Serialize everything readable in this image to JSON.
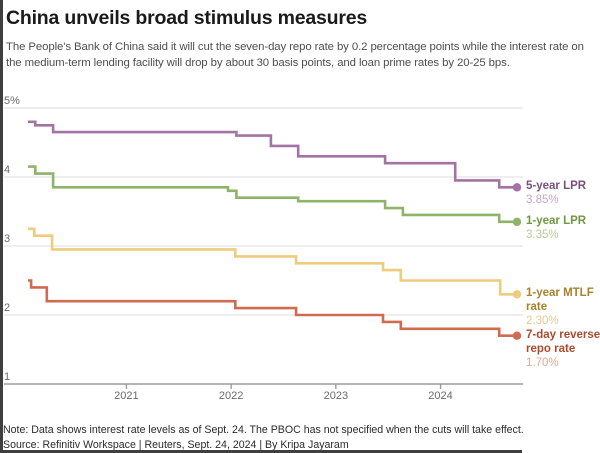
{
  "header": {
    "title": "China unveils broad stimulus measures",
    "subtitle": "The People's Bank of China said it will cut the seven-day repo rate by 0.2 percentage points while the interest rate on the medium-term lending facility will drop by about 30 basis points, and loan prime rates by 20-25 bps."
  },
  "chart_data": {
    "type": "step-line",
    "x_axis": {
      "range": [
        2020.06,
        2024.73
      ],
      "ticks": [
        {
          "value": 2021,
          "label": "2021"
        },
        {
          "value": 2022,
          "label": "2022"
        },
        {
          "value": 2023,
          "label": "2023"
        },
        {
          "value": 2024,
          "label": "2024"
        }
      ]
    },
    "y_axis": {
      "unit": "%",
      "range": [
        1,
        5
      ],
      "ticks": [
        {
          "value": 5,
          "label": "5%"
        },
        {
          "value": 4,
          "label": "4"
        },
        {
          "value": 3,
          "label": "3"
        },
        {
          "value": 2,
          "label": "2"
        },
        {
          "value": 1,
          "label": "1"
        }
      ],
      "grid_color": "#dcdcdc",
      "axis_color": "#9b9b9b"
    },
    "series": [
      {
        "id": "5-year-lpr",
        "label_lines": [
          "5-year LPR"
        ],
        "end_value_label": "3.85%",
        "color": "#a273a3",
        "label_color": "#7a4f7c",
        "value_color": "#c3a8c3",
        "points": [
          [
            2020.06,
            4.8
          ],
          [
            2020.13,
            4.75
          ],
          [
            2020.3,
            4.65
          ],
          [
            2022.05,
            4.6
          ],
          [
            2022.38,
            4.45
          ],
          [
            2022.64,
            4.3
          ],
          [
            2023.47,
            4.2
          ],
          [
            2024.14,
            3.95
          ],
          [
            2024.56,
            3.85
          ]
        ]
      },
      {
        "id": "1-year-lpr",
        "label_lines": [
          "1-year LPR"
        ],
        "end_value_label": "3.35%",
        "color": "#8fb369",
        "label_color": "#6f9840",
        "value_color": "#b5cd92",
        "points": [
          [
            2020.06,
            4.15
          ],
          [
            2020.13,
            4.05
          ],
          [
            2020.3,
            3.85
          ],
          [
            2021.97,
            3.8
          ],
          [
            2022.05,
            3.7
          ],
          [
            2022.64,
            3.65
          ],
          [
            2023.47,
            3.55
          ],
          [
            2023.64,
            3.45
          ],
          [
            2024.56,
            3.35
          ]
        ]
      },
      {
        "id": "1-year-mtlf-rate",
        "label_lines": [
          "1-year MTLF",
          "rate"
        ],
        "end_value_label": "2.30%",
        "color": "#efcb7e",
        "label_color": "#a8822c",
        "value_color": "#e0ca96",
        "points": [
          [
            2020.06,
            3.25
          ],
          [
            2020.12,
            3.15
          ],
          [
            2020.29,
            2.95
          ],
          [
            2022.04,
            2.85
          ],
          [
            2022.62,
            2.75
          ],
          [
            2023.45,
            2.65
          ],
          [
            2023.62,
            2.5
          ],
          [
            2024.57,
            2.3
          ]
        ]
      },
      {
        "id": "7-day-reverse-repo-rate",
        "label_lines": [
          "7-day reverse",
          "repo rate"
        ],
        "end_value_label": "1.70%",
        "color": "#cf6b51",
        "label_color": "#ac4a2d",
        "value_color": "#e2a88f",
        "points": [
          [
            2020.06,
            2.5
          ],
          [
            2020.09,
            2.4
          ],
          [
            2020.24,
            2.2
          ],
          [
            2022.04,
            2.1
          ],
          [
            2022.62,
            2.0
          ],
          [
            2023.45,
            1.9
          ],
          [
            2023.62,
            1.8
          ],
          [
            2024.56,
            1.7
          ]
        ]
      }
    ]
  },
  "footer": {
    "note": "Note: Data shows interest rate levels as of Sept. 24. The PBOC has not specified when the cuts will take effect.",
    "source": "Source: Refinitiv Workspace | Reuters, Sept. 24, 2024 | By Kripa Jayaram"
  }
}
